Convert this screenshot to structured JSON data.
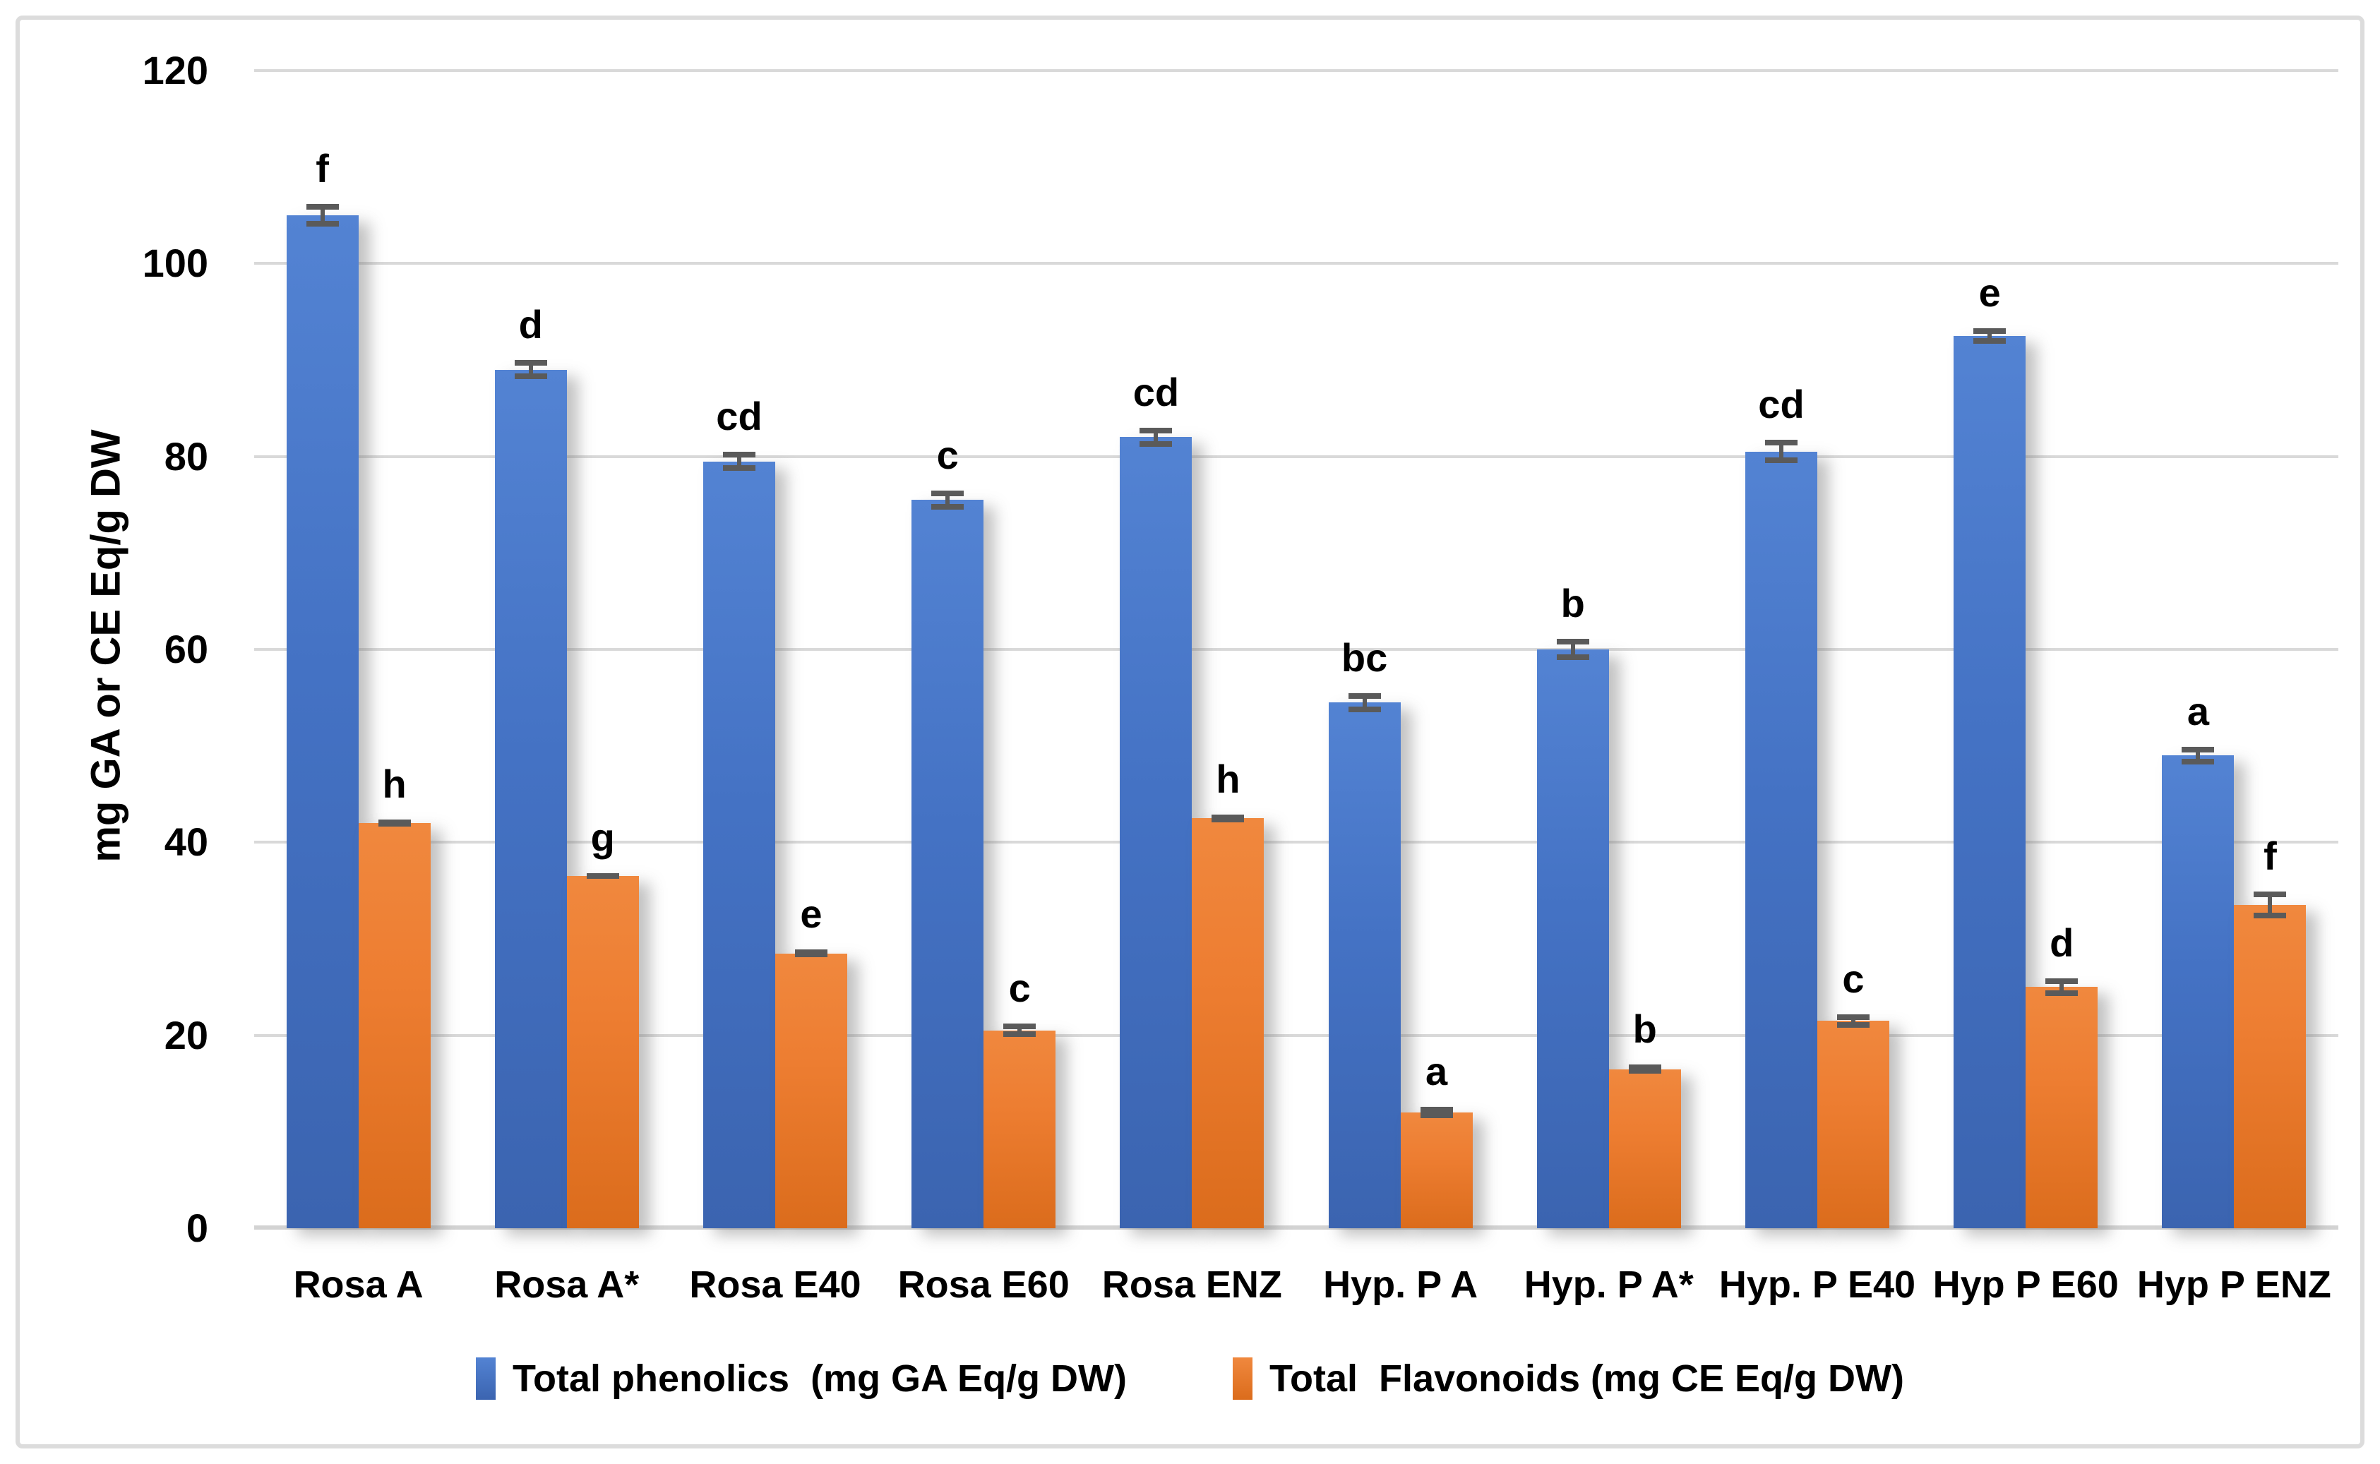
{
  "chart_data": {
    "type": "bar",
    "title": "",
    "ylabel": "mg GA or CE Eq/g DW",
    "xlabel": "",
    "ylim": [
      0,
      120
    ],
    "yticks": [
      0,
      20,
      40,
      60,
      80,
      100,
      120
    ],
    "grid": true,
    "legend_position": "bottom",
    "categories": [
      "Rosa A",
      "Rosa A*",
      "Rosa E40",
      "Rosa E60",
      "Rosa ENZ",
      "Hyp. P A",
      "Hyp. P A*",
      "Hyp. P E40",
      "Hyp P E60",
      "Hyp P ENZ"
    ],
    "series": [
      {
        "name": "Total phenolics  (mg GA Eq/g DW)",
        "color": "#4472C4",
        "values": [
          105,
          89,
          79.5,
          75.5,
          82,
          54.5,
          60,
          80.5,
          92.5,
          49
        ],
        "errors": [
          1.2,
          1.0,
          1.0,
          1.0,
          1.0,
          1.0,
          1.1,
          1.2,
          0.8,
          0.9
        ],
        "letters": [
          "f",
          "d",
          "cd",
          "c",
          "cd",
          "bc",
          "b",
          "cd",
          "e",
          "a"
        ]
      },
      {
        "name": "Total  Flavonoids (mg CE Eq/g DW)",
        "color": "#ED7D31",
        "values": [
          42,
          36.5,
          28.5,
          20.5,
          42.5,
          12,
          16.5,
          21.5,
          25,
          33.5
        ],
        "errors": [
          0.4,
          0.3,
          0.4,
          0.7,
          0.4,
          0.6,
          0.5,
          0.7,
          0.9,
          1.4
        ],
        "letters": [
          "h",
          "g",
          "e",
          "c",
          "h",
          "a",
          "b",
          "c",
          "d",
          "f"
        ]
      }
    ],
    "error_bar_color": "#5a5a5a",
    "gridline_color": "#d9d9d9"
  }
}
